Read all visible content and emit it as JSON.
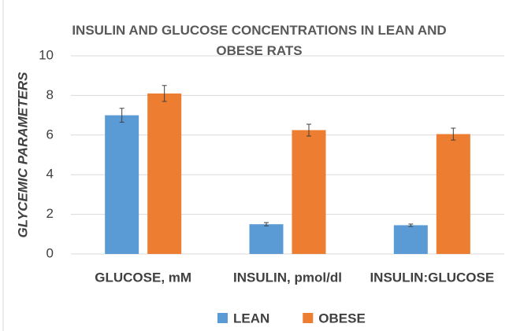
{
  "chart_data": {
    "type": "bar",
    "title": "INSULIN AND GLUCOSE CONCENTRATIONS IN LEAN AND OBESE RATS",
    "y_label": "GLYCEMIC PARAMETERS",
    "categories": [
      "GLUCOSE, mM",
      "INSULIN, pmol/dl",
      "INSULIN:GLUCOSE"
    ],
    "series": [
      {
        "name": "LEAN",
        "color": "#5b9bd5",
        "values": [
          7.0,
          1.5,
          1.45
        ],
        "errors": [
          0.35,
          0.08,
          0.06
        ]
      },
      {
        "name": "OBESE",
        "color": "#ed7d31",
        "values": [
          8.1,
          6.25,
          6.05
        ],
        "errors": [
          0.4,
          0.3,
          0.3
        ]
      }
    ],
    "ylim": [
      0,
      10
    ],
    "yticks": [
      0,
      2,
      4,
      6,
      8,
      10
    ],
    "grid": true,
    "legend": "bottom"
  }
}
